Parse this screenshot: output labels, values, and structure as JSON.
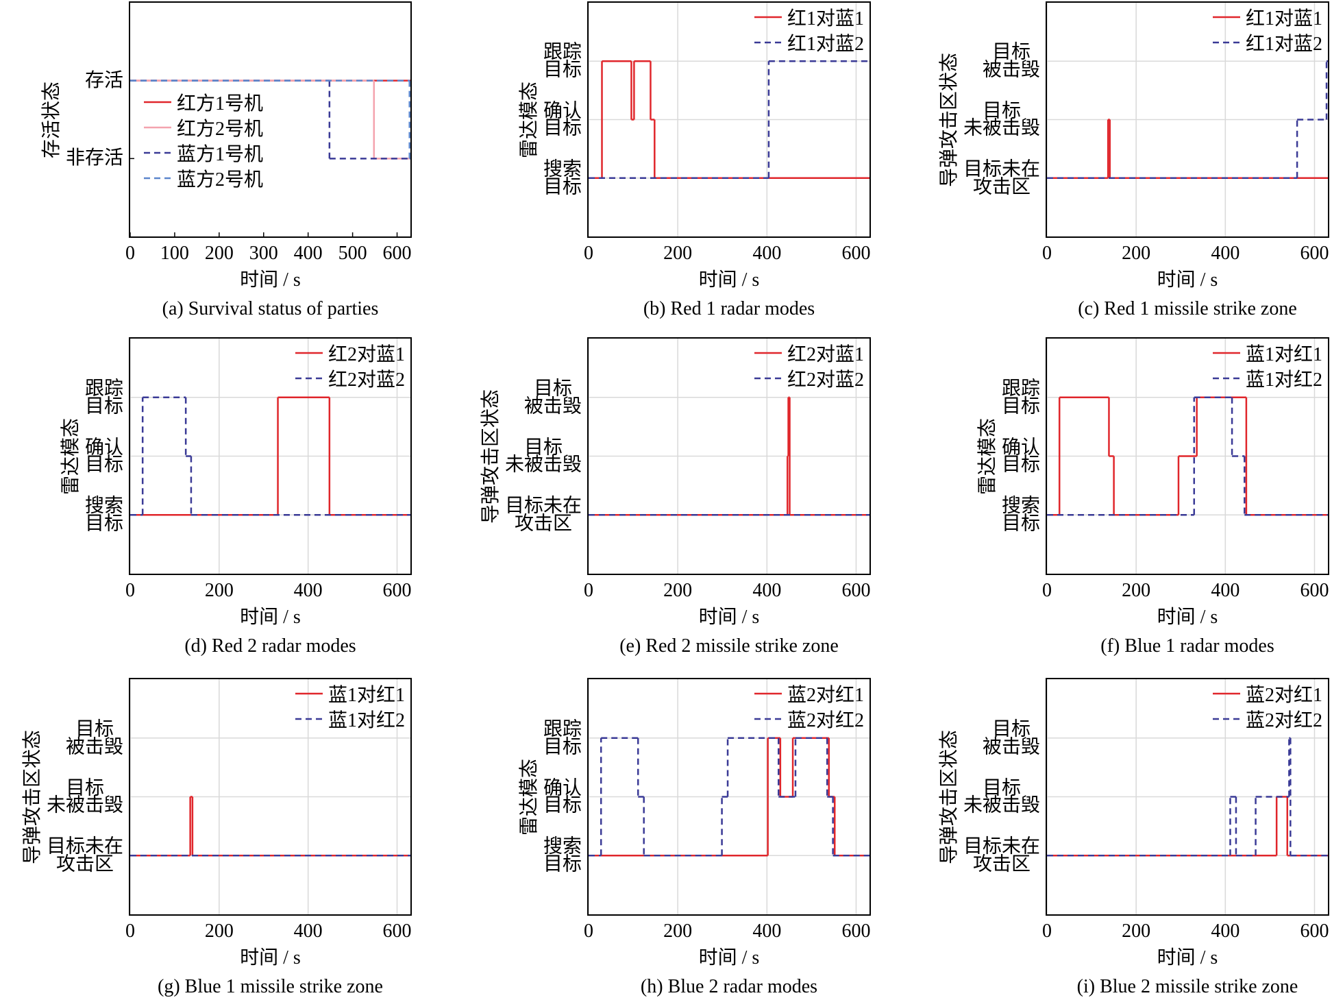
{
  "chart_data": [
    {
      "type": "step",
      "caption": "(a) Survival status of parties",
      "xlabel": "时间 / s",
      "ylabel": "存活状态",
      "xlim": [
        0,
        630
      ],
      "xticks": [
        0,
        100,
        200,
        300,
        400,
        500,
        600
      ],
      "ylim": [
        -1,
        2
      ],
      "yticks": [
        {
          "value": 0,
          "label": "非存活"
        },
        {
          "value": 1,
          "label": "存活"
        }
      ],
      "grid": false,
      "legend_loc": "center left",
      "series": [
        {
          "name": "红方1号机",
          "color": "#e0262b",
          "linestyle": "solid",
          "x": [
            0
          ],
          "values": [
            1
          ]
        },
        {
          "name": "红方2号机",
          "color": "#f4a3ae",
          "linestyle": "solid",
          "x": [
            0,
            548
          ],
          "values": [
            1,
            0
          ]
        },
        {
          "name": "蓝方1号机",
          "color": "#3a3a96",
          "linestyle": "dashed",
          "x": [
            0,
            448
          ],
          "values": [
            1,
            0
          ]
        },
        {
          "name": "蓝方2号机",
          "color": "#5b86cc",
          "linestyle": "dashed",
          "x": [
            0,
            628
          ],
          "values": [
            1,
            0
          ]
        }
      ]
    },
    {
      "type": "step",
      "caption": "(b) Red 1 radar modes",
      "xlabel": "时间 / s",
      "ylabel": "雷达模态",
      "xlim": [
        0,
        630
      ],
      "xticks": [
        0,
        200,
        400,
        600
      ],
      "ylim": [
        -1,
        3
      ],
      "yticks": [
        {
          "value": 0,
          "label": "搜索\n目标"
        },
        {
          "value": 1,
          "label": "确认\n目标"
        },
        {
          "value": 2,
          "label": "跟踪\n目标"
        }
      ],
      "grid": true,
      "legend_loc": "upper right",
      "series": [
        {
          "name": "红1对蓝1",
          "color": "#e0262b",
          "linestyle": "solid",
          "x": [
            0,
            30,
            96,
            102,
            139,
            148
          ],
          "values": [
            0,
            2,
            1,
            2,
            1,
            0
          ]
        },
        {
          "name": "红1对蓝2",
          "color": "#3a3a96",
          "linestyle": "dashed",
          "x": [
            0,
            404
          ],
          "values": [
            0,
            2
          ]
        }
      ]
    },
    {
      "type": "step",
      "caption": "(c) Red 1 missile strike zone",
      "xlabel": "时间 / s",
      "ylabel": "导弹攻击区状态",
      "xlim": [
        0,
        630
      ],
      "xticks": [
        0,
        200,
        400,
        600
      ],
      "ylim": [
        -1,
        3
      ],
      "yticks": [
        {
          "value": 0,
          "label": "目标未在\n攻击区"
        },
        {
          "value": 1,
          "label": "目标\n未被击毁"
        },
        {
          "value": 2,
          "label": "目标\n被击毁"
        }
      ],
      "grid": true,
      "legend_loc": "upper right",
      "series": [
        {
          "name": "红1对蓝1",
          "color": "#e0262b",
          "linestyle": "solid",
          "x": [
            0,
            137,
            141
          ],
          "values": [
            0,
            1,
            0
          ]
        },
        {
          "name": "红1对蓝2",
          "color": "#3a3a96",
          "linestyle": "dashed",
          "x": [
            0,
            561,
            627
          ],
          "values": [
            0,
            1,
            2
          ]
        }
      ]
    },
    {
      "type": "step",
      "caption": "(d) Red 2 radar modes",
      "xlabel": "时间 / s",
      "ylabel": "雷达模态",
      "xlim": [
        0,
        630
      ],
      "xticks": [
        0,
        200,
        400,
        600
      ],
      "ylim": [
        -1,
        3
      ],
      "yticks": [
        {
          "value": 0,
          "label": "搜索\n目标"
        },
        {
          "value": 1,
          "label": "确认\n目标"
        },
        {
          "value": 2,
          "label": "跟踪\n目标"
        }
      ],
      "grid": true,
      "legend_loc": "upper right",
      "series": [
        {
          "name": "红2对蓝1",
          "color": "#e0262b",
          "linestyle": "solid",
          "x": [
            0,
            332,
            448
          ],
          "values": [
            0,
            2,
            0
          ]
        },
        {
          "name": "红2对蓝2",
          "color": "#3a3a96",
          "linestyle": "dashed",
          "x": [
            0,
            28,
            125,
            137
          ],
          "values": [
            0,
            2,
            1,
            0
          ]
        }
      ]
    },
    {
      "type": "step",
      "caption": "(e) Red 2 missile strike zone",
      "xlabel": "时间 / s",
      "ylabel": "导弹攻击区状态",
      "xlim": [
        0,
        630
      ],
      "xticks": [
        0,
        200,
        400,
        600
      ],
      "ylim": [
        -1,
        3
      ],
      "yticks": [
        {
          "value": 0,
          "label": "目标未在\n攻击区"
        },
        {
          "value": 1,
          "label": "目标\n未被击毁"
        },
        {
          "value": 2,
          "label": "目标\n被击毁"
        }
      ],
      "grid": true,
      "legend_loc": "upper right",
      "series": [
        {
          "name": "红2对蓝1",
          "color": "#e0262b",
          "linestyle": "solid",
          "x": [
            0,
            446,
            448,
            451
          ],
          "values": [
            0,
            1,
            2,
            0
          ]
        },
        {
          "name": "红2对蓝2",
          "color": "#3a3a96",
          "linestyle": "dashed",
          "x": [
            0
          ],
          "values": [
            0
          ]
        }
      ]
    },
    {
      "type": "step",
      "caption": "(f) Blue 1 radar modes",
      "xlabel": "时间 / s",
      "ylabel": "雷达模态",
      "xlim": [
        0,
        630
      ],
      "xticks": [
        0,
        200,
        400,
        600
      ],
      "ylim": [
        -1,
        3
      ],
      "yticks": [
        {
          "value": 0,
          "label": "搜索\n目标"
        },
        {
          "value": 1,
          "label": "确认\n目标"
        },
        {
          "value": 2,
          "label": "跟踪\n目标"
        }
      ],
      "grid": true,
      "legend_loc": "upper right",
      "series": [
        {
          "name": "蓝1对红1",
          "color": "#e0262b",
          "linestyle": "solid",
          "x": [
            0,
            28,
            139,
            150,
            295,
            336,
            447
          ],
          "values": [
            0,
            2,
            1,
            0,
            1,
            2,
            0
          ]
        },
        {
          "name": "蓝1对红2",
          "color": "#3a3a96",
          "linestyle": "dashed",
          "x": [
            0,
            330,
            415,
            443
          ],
          "values": [
            0,
            2,
            1,
            0
          ]
        }
      ]
    },
    {
      "type": "step",
      "caption": "(g) Blue 1 missile strike zone",
      "xlabel": "时间 / s",
      "ylabel": "导弹攻击区状态",
      "xlim": [
        0,
        630
      ],
      "xticks": [
        0,
        200,
        400,
        600
      ],
      "ylim": [
        -1,
        3
      ],
      "yticks": [
        {
          "value": 0,
          "label": "目标未在\n攻击区"
        },
        {
          "value": 1,
          "label": "目标\n未被击毁"
        },
        {
          "value": 2,
          "label": "目标\n被击毁"
        }
      ],
      "grid": true,
      "legend_loc": "upper right",
      "series": [
        {
          "name": "蓝1对红1",
          "color": "#e0262b",
          "linestyle": "solid",
          "x": [
            0,
            135,
            140
          ],
          "values": [
            0,
            1,
            0
          ]
        },
        {
          "name": "蓝1对红2",
          "color": "#3a3a96",
          "linestyle": "dashed",
          "x": [
            0
          ],
          "values": [
            0
          ]
        }
      ]
    },
    {
      "type": "step",
      "caption": "(h) Blue 2 radar modes",
      "xlabel": "时间 / s",
      "ylabel": "雷达模态",
      "xlim": [
        0,
        630
      ],
      "xticks": [
        0,
        200,
        400,
        600
      ],
      "ylim": [
        -1,
        3
      ],
      "yticks": [
        {
          "value": 0,
          "label": "搜索\n目标"
        },
        {
          "value": 1,
          "label": "确认\n目标"
        },
        {
          "value": 2,
          "label": "跟踪\n目标"
        }
      ],
      "grid": true,
      "legend_loc": "upper right",
      "series": [
        {
          "name": "蓝2对红1",
          "color": "#e0262b",
          "linestyle": "solid",
          "x": [
            0,
            402,
            430,
            458,
            539,
            552
          ],
          "values": [
            0,
            2,
            1,
            2,
            1,
            0
          ]
        },
        {
          "name": "蓝2对红2",
          "color": "#3a3a96",
          "linestyle": "dashed",
          "x": [
            0,
            28,
            111,
            124,
            299,
            312,
            426,
            464,
            535,
            548
          ],
          "values": [
            0,
            2,
            1,
            0,
            1,
            2,
            1,
            2,
            1,
            0
          ]
        }
      ]
    },
    {
      "type": "step",
      "caption": "(i) Blue 2 missile strike zone",
      "xlabel": "时间 / s",
      "ylabel": "导弹攻击区状态",
      "xlim": [
        0,
        630
      ],
      "xticks": [
        0,
        200,
        400,
        600
      ],
      "ylim": [
        -1,
        3
      ],
      "yticks": [
        {
          "value": 0,
          "label": "目标未在\n攻击区"
        },
        {
          "value": 1,
          "label": "目标\n未被击毁"
        },
        {
          "value": 2,
          "label": "目标\n被击毁"
        }
      ],
      "grid": true,
      "legend_loc": "upper right",
      "series": [
        {
          "name": "蓝2对红1",
          "color": "#e0262b",
          "linestyle": "solid",
          "x": [
            0,
            515,
            539
          ],
          "values": [
            0,
            1,
            0
          ]
        },
        {
          "name": "蓝2对红2",
          "color": "#3a3a96",
          "linestyle": "dashed",
          "x": [
            0,
            411,
            424,
            468,
            543,
            546
          ],
          "values": [
            0,
            1,
            0,
            1,
            2,
            0
          ]
        }
      ]
    }
  ]
}
